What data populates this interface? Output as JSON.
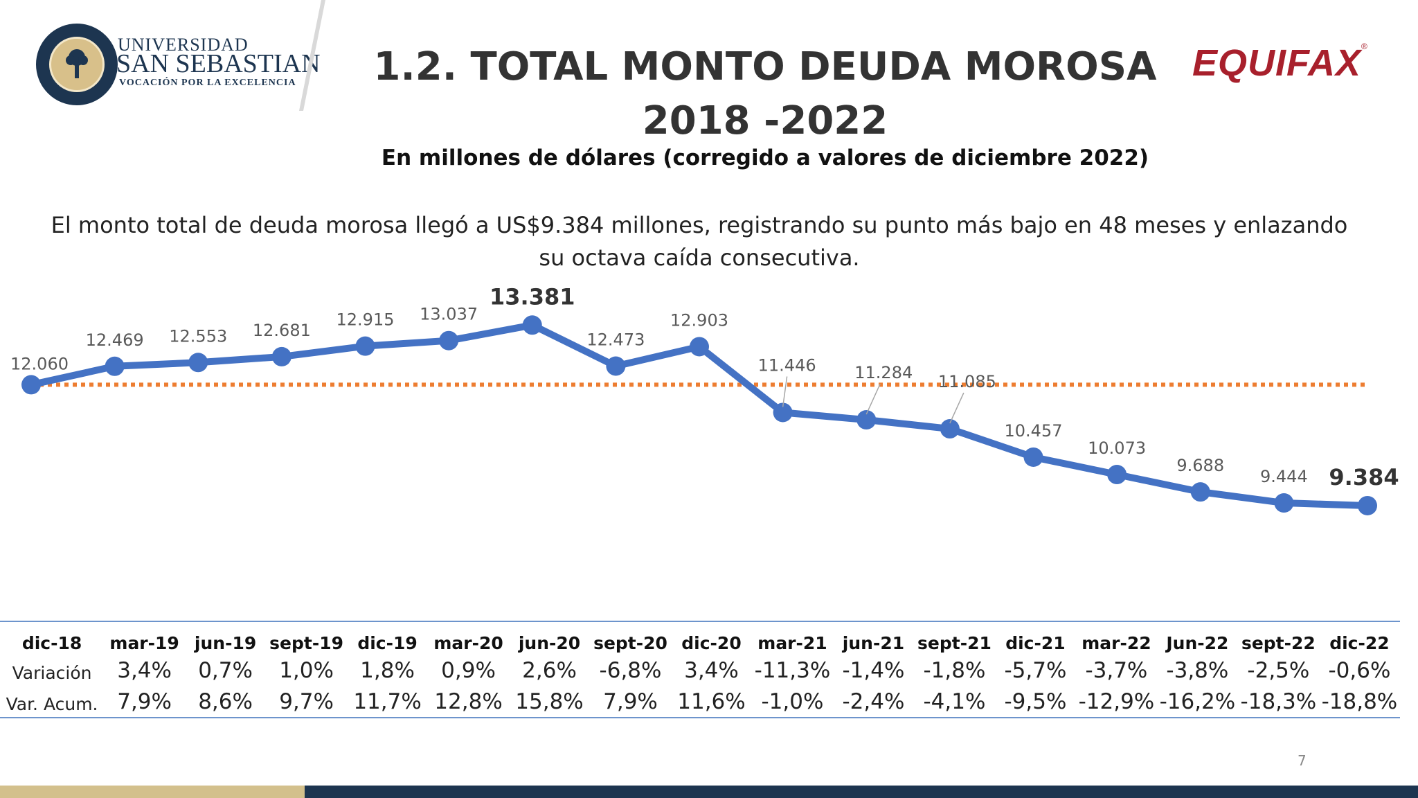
{
  "header": {
    "logo_line1": "UNIVERSIDAD",
    "logo_line2": "SAN SEBASTIAN",
    "logo_line3": "VOCACIÓN POR LA EXCELENCIA",
    "seal_text": [
      "VERDAD",
      "RAZON",
      "VIRTUD",
      "1989"
    ],
    "brand": "EQUIFAX",
    "brand_mark": "®",
    "brand_color": "#a8202c",
    "title_line1": "1.2. TOTAL MONTO DEUDA MOROSA",
    "title_line2": "2018 -2022",
    "subtitle": "En millones de dólares (corregido a valores de diciembre 2022)"
  },
  "lead_text": "El monto total de deuda morosa llegó a US$9.384 millones, registrando su punto más bajo en 48 meses y enlazando su octava caída consecutiva.",
  "chart_data": {
    "type": "line",
    "categories": [
      "dic-18",
      "mar-19",
      "jun-19",
      "sept-19",
      "dic-19",
      "mar-20",
      "jun-20",
      "sept-20",
      "dic-20",
      "mar-21",
      "jun-21",
      "sept-21",
      "dic-21",
      "mar-22",
      "Jun-22",
      "sept-22",
      "dic-22"
    ],
    "values": [
      12060,
      12469,
      12553,
      12681,
      12915,
      13037,
      13381,
      12473,
      12903,
      11446,
      11284,
      11085,
      10457,
      10073,
      9688,
      9444,
      9384
    ],
    "value_labels": [
      "12.060",
      "12.469",
      "12.553",
      "12.681",
      "12.915",
      "13.037",
      "13.381",
      "12.473",
      "12.903",
      "11.446",
      "11.284",
      "11.085",
      "10.457",
      "10.073",
      "9.688",
      "9.444",
      "9.384"
    ],
    "highlighted_labels": [
      6,
      16
    ],
    "reference_line": 12060,
    "line_color": "#4472c4",
    "reference_color": "#ed7d31",
    "grid": false,
    "legend": "none"
  },
  "table": {
    "row_labels": [
      "Variación",
      "Var. Acum."
    ],
    "headers": [
      "dic-18",
      "mar-19",
      "jun-19",
      "sept-19",
      "dic-19",
      "mar-20",
      "jun-20",
      "sept-20",
      "dic-20",
      "mar-21",
      "jun-21",
      "sept-21",
      "dic-21",
      "mar-22",
      "Jun-22",
      "sept-22",
      "dic-22"
    ],
    "variacion": [
      "3,4%",
      "0,7%",
      "1,0%",
      "1,8%",
      "0,9%",
      "2,6%",
      "-6,8%",
      "3,4%",
      "-11,3%",
      "-1,4%",
      "-1,8%",
      "-5,7%",
      "-3,7%",
      "-3,8%",
      "-2,5%",
      "-0,6%"
    ],
    "var_acum": [
      "7,9%",
      "8,6%",
      "9,7%",
      "11,7%",
      "12,8%",
      "15,8%",
      "7,9%",
      "11,6%",
      "-1,0%",
      "-2,4%",
      "-4,1%",
      "-9,5%",
      "-12,9%",
      "-16,2%",
      "-18,3%",
      "-18,8%"
    ]
  },
  "page_number": "7"
}
